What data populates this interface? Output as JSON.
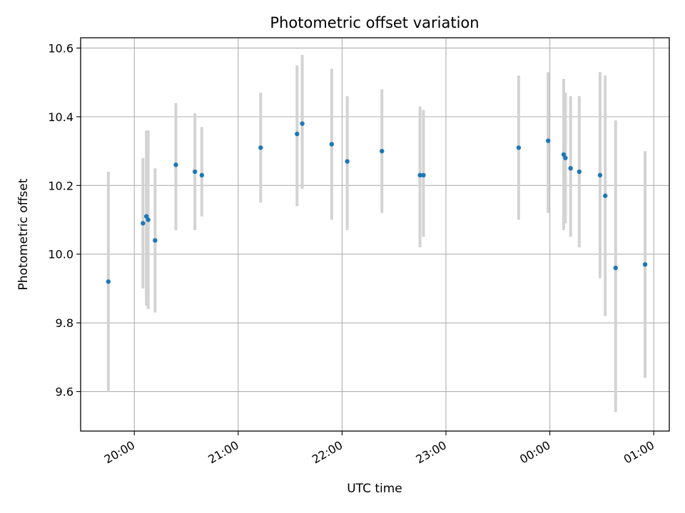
{
  "chart_data": {
    "type": "scatter",
    "title": "Photometric offset variation",
    "xlabel": "UTC time",
    "ylabel": "Photometric offset",
    "x_axis_kind": "time",
    "xlim": [
      "19:29",
      "01:09"
    ],
    "ylim": [
      9.485,
      10.63
    ],
    "x_ticks": [
      {
        "time": "20:00",
        "label": "20:00"
      },
      {
        "time": "21:00",
        "label": "21:00"
      },
      {
        "time": "22:00",
        "label": "22:00"
      },
      {
        "time": "23:00",
        "label": "23:00"
      },
      {
        "time": "00:00",
        "label": "00:00"
      },
      {
        "time": "01:00",
        "label": "01:00"
      }
    ],
    "y_ticks": [
      {
        "value": 9.6,
        "label": "9.6"
      },
      {
        "value": 9.8,
        "label": "9.8"
      },
      {
        "value": 10.0,
        "label": "10.0"
      },
      {
        "value": 10.2,
        "label": "10.2"
      },
      {
        "value": 10.4,
        "label": "10.4"
      },
      {
        "value": 10.6,
        "label": "10.6"
      }
    ],
    "grid": true,
    "legend": "none",
    "colors": {
      "point": "#1f77b4",
      "errorbar": "#d3d3d3",
      "grid": "#b0b0b0"
    },
    "series": [
      {
        "points": [
          {
            "x": "19:45",
            "y": 9.92,
            "lo": 9.6,
            "hi": 10.24
          },
          {
            "x": "20:05",
            "y": 10.09,
            "lo": 9.9,
            "hi": 10.28
          },
          {
            "x": "20:07",
            "y": 10.11,
            "lo": 9.85,
            "hi": 10.36
          },
          {
            "x": "20:08",
            "y": 10.1,
            "lo": 9.84,
            "hi": 10.36
          },
          {
            "x": "20:12",
            "y": 10.04,
            "lo": 9.83,
            "hi": 10.25
          },
          {
            "x": "20:24",
            "y": 10.26,
            "lo": 10.07,
            "hi": 10.44
          },
          {
            "x": "20:35",
            "y": 10.24,
            "lo": 10.07,
            "hi": 10.41
          },
          {
            "x": "20:39",
            "y": 10.23,
            "lo": 10.11,
            "hi": 10.37
          },
          {
            "x": "21:13",
            "y": 10.31,
            "lo": 10.15,
            "hi": 10.47
          },
          {
            "x": "21:34",
            "y": 10.35,
            "lo": 10.14,
            "hi": 10.55
          },
          {
            "x": "21:37",
            "y": 10.38,
            "lo": 10.19,
            "hi": 10.58
          },
          {
            "x": "21:54",
            "y": 10.32,
            "lo": 10.1,
            "hi": 10.54
          },
          {
            "x": "22:03",
            "y": 10.27,
            "lo": 10.07,
            "hi": 10.46
          },
          {
            "x": "22:23",
            "y": 10.3,
            "lo": 10.12,
            "hi": 10.48
          },
          {
            "x": "22:45",
            "y": 10.23,
            "lo": 10.02,
            "hi": 10.43
          },
          {
            "x": "22:47",
            "y": 10.23,
            "lo": 10.05,
            "hi": 10.42
          },
          {
            "x": "23:42",
            "y": 10.31,
            "lo": 10.1,
            "hi": 10.52
          },
          {
            "x": "23:59",
            "y": 10.33,
            "lo": 10.12,
            "hi": 10.53
          },
          {
            "x": "00:08",
            "y": 10.29,
            "lo": 10.07,
            "hi": 10.51
          },
          {
            "x": "00:09",
            "y": 10.28,
            "lo": 10.09,
            "hi": 10.47
          },
          {
            "x": "00:12",
            "y": 10.25,
            "lo": 10.05,
            "hi": 10.46
          },
          {
            "x": "00:17",
            "y": 10.24,
            "lo": 10.02,
            "hi": 10.46
          },
          {
            "x": "00:29",
            "y": 10.23,
            "lo": 9.93,
            "hi": 10.53
          },
          {
            "x": "00:32",
            "y": 10.17,
            "lo": 9.82,
            "hi": 10.52
          },
          {
            "x": "00:38",
            "y": 9.96,
            "lo": 9.54,
            "hi": 10.39
          },
          {
            "x": "00:55",
            "y": 9.97,
            "lo": 9.64,
            "hi": 10.3
          }
        ]
      }
    ]
  }
}
